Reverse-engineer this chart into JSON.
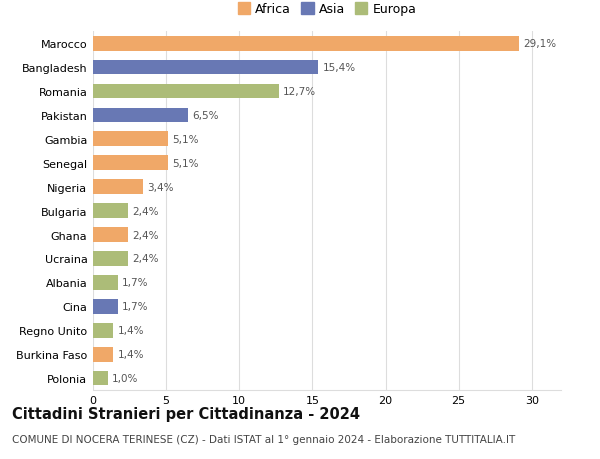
{
  "categories": [
    "Marocco",
    "Bangladesh",
    "Romania",
    "Pakistan",
    "Gambia",
    "Senegal",
    "Nigeria",
    "Bulgaria",
    "Ghana",
    "Ucraina",
    "Albania",
    "Cina",
    "Regno Unito",
    "Burkina Faso",
    "Polonia"
  ],
  "values": [
    29.1,
    15.4,
    12.7,
    6.5,
    5.1,
    5.1,
    3.4,
    2.4,
    2.4,
    2.4,
    1.7,
    1.7,
    1.4,
    1.4,
    1.0
  ],
  "labels": [
    "29,1%",
    "15,4%",
    "12,7%",
    "6,5%",
    "5,1%",
    "5,1%",
    "3,4%",
    "2,4%",
    "2,4%",
    "2,4%",
    "1,7%",
    "1,7%",
    "1,4%",
    "1,4%",
    "1,0%"
  ],
  "continents": [
    "Africa",
    "Asia",
    "Europa",
    "Asia",
    "Africa",
    "Africa",
    "Africa",
    "Europa",
    "Africa",
    "Europa",
    "Europa",
    "Asia",
    "Europa",
    "Africa",
    "Europa"
  ],
  "colors": {
    "Africa": "#F0A868",
    "Asia": "#6878B4",
    "Europa": "#ACBC78"
  },
  "legend_labels": [
    "Africa",
    "Asia",
    "Europa"
  ],
  "xlim": [
    0,
    32
  ],
  "xticks": [
    0,
    5,
    10,
    15,
    20,
    25,
    30
  ],
  "title": "Cittadini Stranieri per Cittadinanza - 2024",
  "subtitle": "COMUNE DI NOCERA TERINESE (CZ) - Dati ISTAT al 1° gennaio 2024 - Elaborazione TUTTITALIA.IT",
  "bg_color": "#ffffff",
  "grid_color": "#dddddd",
  "bar_height": 0.62,
  "title_fontsize": 10.5,
  "subtitle_fontsize": 7.5,
  "label_fontsize": 7.5,
  "tick_fontsize": 8,
  "legend_fontsize": 9
}
